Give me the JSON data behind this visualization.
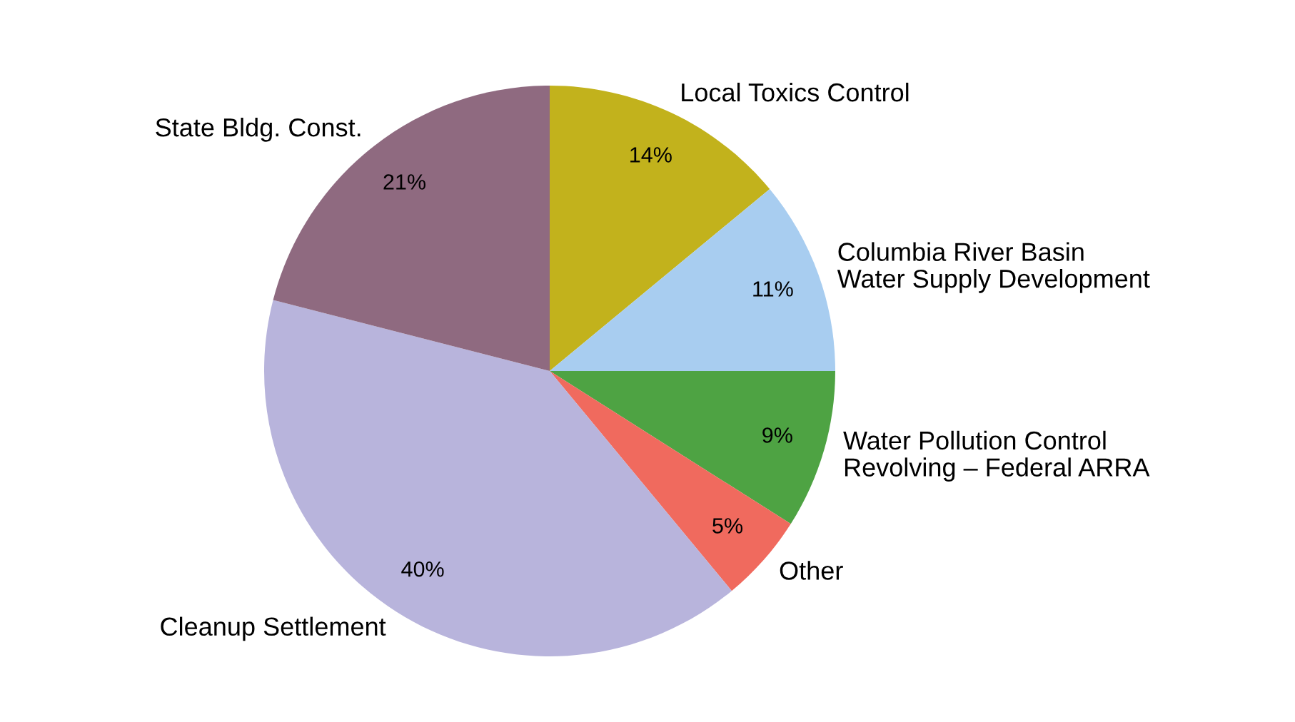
{
  "chart_data": {
    "type": "pie",
    "categories": [
      "Local Toxics Control",
      "Columbia River Basin\nWater Supply Development",
      "Water Pollution Control\nRevolving – Federal ARRA",
      "Other",
      "Cleanup Settlement",
      "State Bldg. Const."
    ],
    "values": [
      14,
      11,
      9,
      5,
      40,
      21
    ],
    "value_labels": [
      "14%",
      "11%",
      "9%",
      "5%",
      "40%",
      "21%"
    ],
    "colors": [
      "#c2b21c",
      "#a8cdf0",
      "#4ea343",
      "#f06a5e",
      "#b8b4dc",
      "#8f6a80"
    ]
  }
}
